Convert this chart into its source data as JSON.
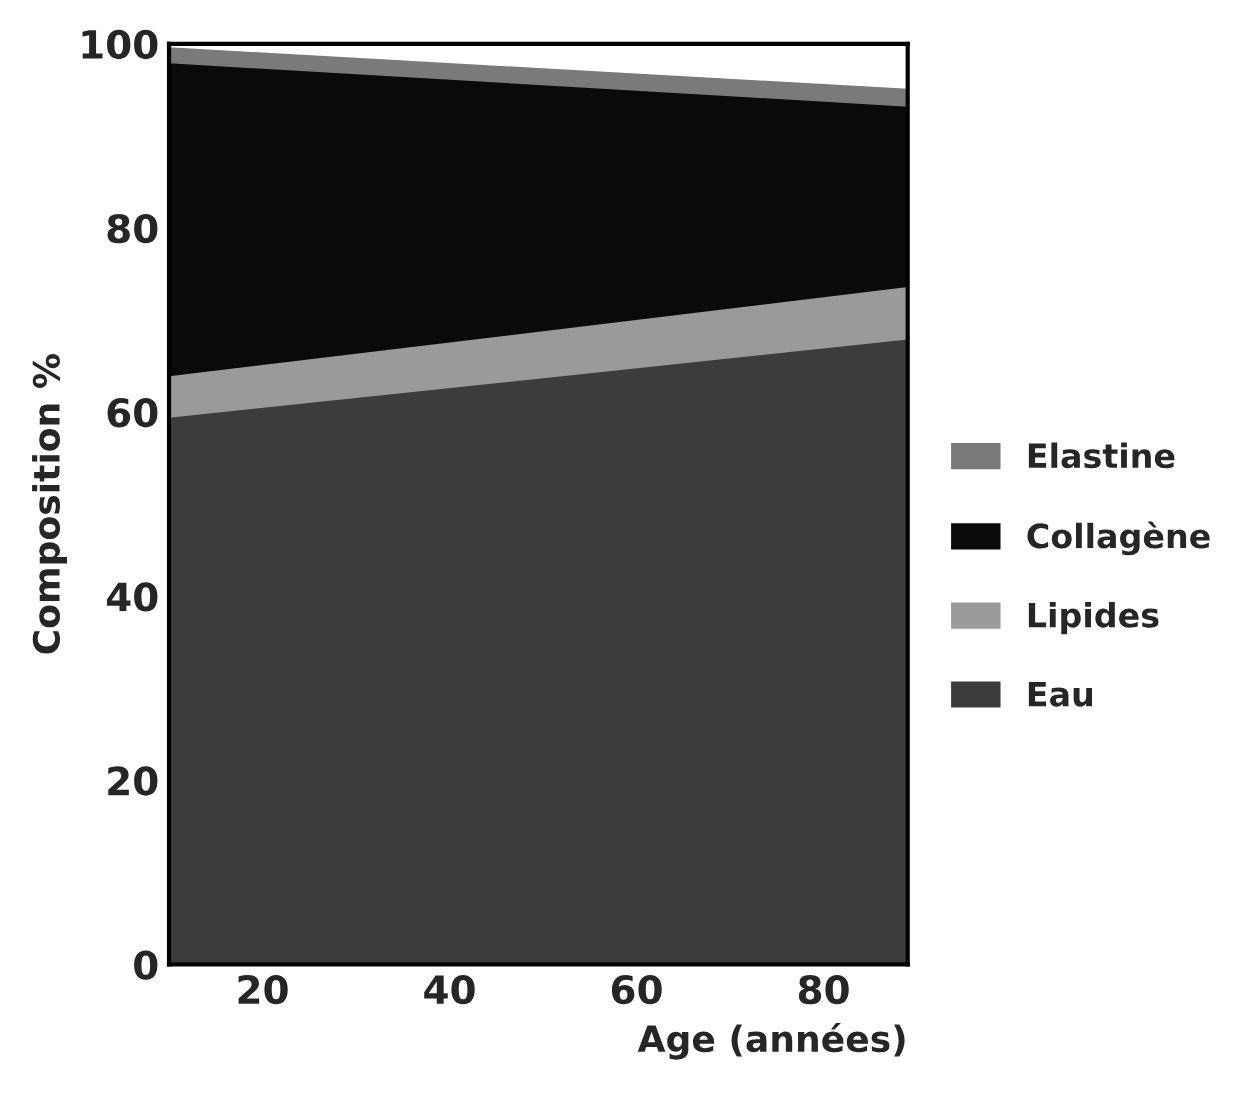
{
  "chart_data": {
    "type": "area",
    "stacked": true,
    "xlabel": "Age (années)",
    "ylabel": "Composition %",
    "x": [
      10,
      89
    ],
    "xlim": [
      10,
      89
    ],
    "xticks": [
      20,
      40,
      60,
      80
    ],
    "ylim": [
      0,
      100
    ],
    "yticks": [
      0,
      20,
      40,
      60,
      80,
      100
    ],
    "grid": false,
    "legend": "right",
    "series": [
      {
        "name": "Eau",
        "color": "#3c3c3c",
        "values": [
          59.5,
          68
        ]
      },
      {
        "name": "Lipides",
        "color": "#9a9a9a",
        "values": [
          4.5,
          5.7
        ]
      },
      {
        "name": "Collagène",
        "color": "#0a0a0a",
        "values": [
          34,
          19.6
        ]
      },
      {
        "name": "Elastine",
        "color": "#7a7a7a",
        "values": [
          1.5,
          1.7
        ]
      }
    ]
  }
}
